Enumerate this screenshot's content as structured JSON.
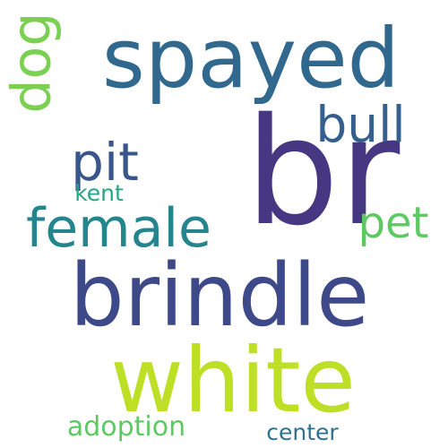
{
  "words": [
    {
      "text": "br",
      "color": "#453781",
      "orientation": "horizontal"
    },
    {
      "text": "spayed",
      "color": "#31688e",
      "orientation": "horizontal"
    },
    {
      "text": "brindle",
      "color": "#3e4989",
      "orientation": "horizontal"
    },
    {
      "text": "white",
      "color": "#bddf26",
      "orientation": "horizontal"
    },
    {
      "text": "female",
      "color": "#25858e",
      "orientation": "horizontal"
    },
    {
      "text": "bull",
      "color": "#355f8d",
      "orientation": "horizontal"
    },
    {
      "text": "pit",
      "color": "#39568c",
      "orientation": "horizontal"
    },
    {
      "text": "pet",
      "color": "#5ec962",
      "orientation": "horizontal"
    },
    {
      "text": "dog",
      "color": "#7ad151",
      "orientation": "vertical"
    },
    {
      "text": "kent",
      "color": "#22a884",
      "orientation": "horizontal"
    },
    {
      "text": "adoption",
      "color": "#5ec962",
      "orientation": "horizontal"
    },
    {
      "text": "center",
      "color": "#2c728e",
      "orientation": "horizontal"
    }
  ]
}
